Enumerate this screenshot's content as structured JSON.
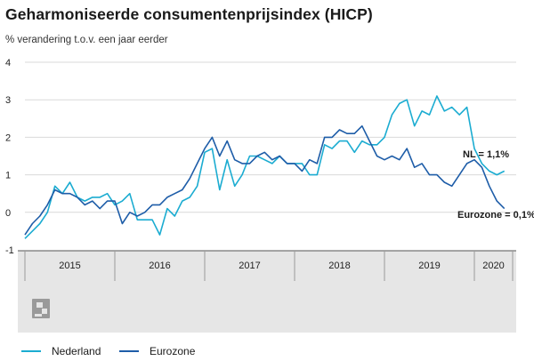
{
  "title": "Geharmoniseerde consumentenprijsindex (HICP)",
  "subtitle": "% verandering t.o.v. een jaar eerder",
  "annotations": {
    "nl": "NL = 1,1%",
    "ez": "Eurozone = 0,1%"
  },
  "legend": [
    {
      "name": "Nederland",
      "color": "#1bacd1"
    },
    {
      "name": "Eurozone",
      "color": "#1e5da8"
    }
  ],
  "logo": "cbs",
  "chart_data": {
    "type": "line",
    "ylim": [
      -1,
      4
    ],
    "yticks": [
      -1,
      0,
      1,
      2,
      3,
      4
    ],
    "year_labels": [
      "2015",
      "2016",
      "2017",
      "2018",
      "2019",
      "2020"
    ],
    "x_start": "2015-01",
    "x_end": "2020-04",
    "grid": true,
    "legend_position": "bottom",
    "series": [
      {
        "name": "Nederland",
        "color": "#1bacd1",
        "values": [
          -0.7,
          -0.5,
          -0.3,
          0.0,
          0.7,
          0.5,
          0.8,
          0.4,
          0.3,
          0.4,
          0.4,
          0.5,
          0.2,
          0.3,
          0.5,
          -0.2,
          -0.2,
          -0.2,
          -0.6,
          0.1,
          -0.1,
          0.3,
          0.4,
          0.7,
          1.6,
          1.7,
          0.6,
          1.4,
          0.7,
          1.0,
          1.5,
          1.5,
          1.4,
          1.3,
          1.5,
          1.3,
          1.3,
          1.3,
          1.0,
          1.0,
          1.8,
          1.7,
          1.9,
          1.9,
          1.6,
          1.9,
          1.8,
          1.8,
          2.0,
          2.6,
          2.9,
          3.0,
          2.3,
          2.7,
          2.6,
          3.1,
          2.7,
          2.8,
          2.6,
          2.8,
          1.7,
          1.3,
          1.1,
          1.0,
          1.1
        ]
      },
      {
        "name": "Eurozone",
        "color": "#1e5da8",
        "values": [
          -0.6,
          -0.3,
          -0.1,
          0.2,
          0.6,
          0.5,
          0.5,
          0.4,
          0.2,
          0.3,
          0.1,
          0.3,
          0.3,
          -0.3,
          0.0,
          -0.1,
          0.0,
          0.2,
          0.2,
          0.4,
          0.5,
          0.6,
          0.9,
          1.3,
          1.7,
          2.0,
          1.5,
          1.9,
          1.4,
          1.3,
          1.3,
          1.5,
          1.6,
          1.4,
          1.5,
          1.3,
          1.3,
          1.1,
          1.4,
          1.3,
          2.0,
          2.0,
          2.2,
          2.1,
          2.1,
          2.3,
          1.9,
          1.5,
          1.4,
          1.5,
          1.4,
          1.7,
          1.2,
          1.3,
          1.0,
          1.0,
          0.8,
          0.7,
          1.0,
          1.3,
          1.4,
          1.2,
          0.7,
          0.3,
          0.1
        ]
      }
    ]
  }
}
